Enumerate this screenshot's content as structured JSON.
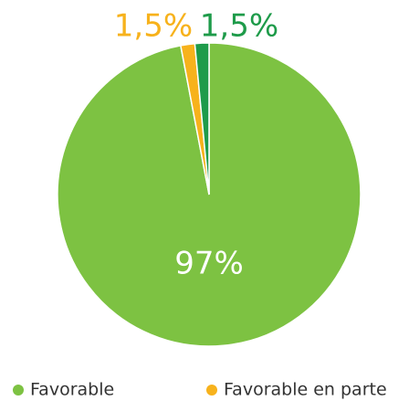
{
  "chart_data": {
    "type": "pie",
    "categories": [
      "Favorable",
      "Favorable en parte",
      null
    ],
    "values": [
      97,
      1.5,
      1.5
    ],
    "value_labels": [
      "97%",
      "1,5%",
      "1,5%"
    ],
    "colors": [
      "#7dc242",
      "#f7b21c",
      "#1e9b4a"
    ]
  }
}
